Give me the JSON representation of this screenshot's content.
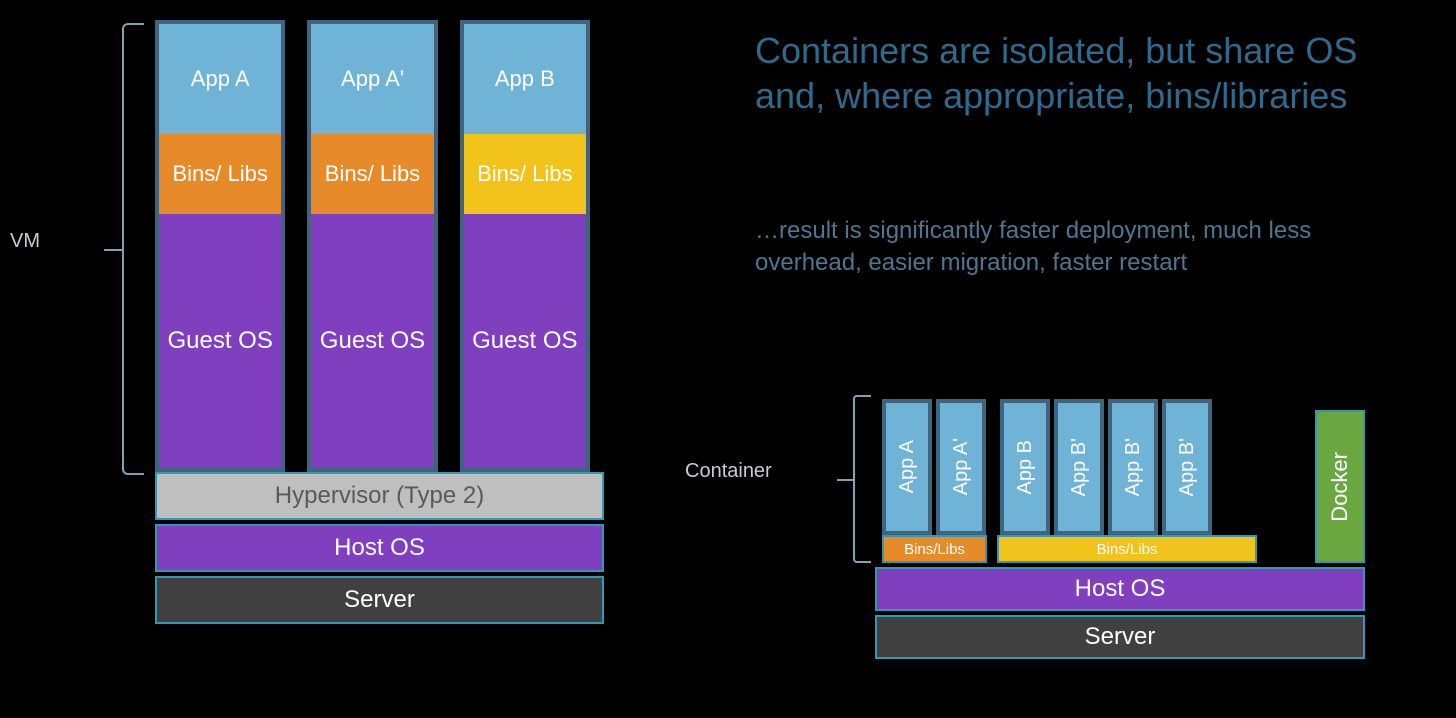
{
  "type": "infographic",
  "background_color": "#000000",
  "border_color_heavy": "#3f647e",
  "border_color_light": "#2f9ab6",
  "text_color_label": "#c9cbd0",
  "colors": {
    "app_blue": "#6fb4d6",
    "bins_orange": "#e78b2a",
    "bins_yellow": "#f2c31b",
    "guest_purple": "#7f3fbf",
    "hypervisor_gray": "#bfbfbf",
    "hostos_purple": "#7f3fbf",
    "server_dark": "#404040",
    "docker_green": "#6aa741"
  },
  "vm": {
    "bracket_label": "VM",
    "columns": [
      {
        "app": "App A",
        "bins": "Bins/ Libs",
        "bins_color": "#e78b2a",
        "guest": "Guest OS"
      },
      {
        "app": "App A'",
        "bins": "Bins/ Libs",
        "bins_color": "#e78b2a",
        "guest": "Guest OS"
      },
      {
        "app": "App B",
        "bins": "Bins/ Libs",
        "bins_color": "#f2c31b",
        "guest": "Guest OS"
      }
    ],
    "base_layers": [
      {
        "label": "Hypervisor (Type 2)",
        "color": "#bfbfbf",
        "text_color": "#5a5a5a"
      },
      {
        "label": "Host OS",
        "color": "#7f3fbf",
        "text_color": "#ffffff"
      },
      {
        "label": "Server",
        "color": "#404040",
        "text_color": "#ffffff"
      }
    ]
  },
  "headline": "Containers are isolated, but share OS and, where appropriate, bins/libraries",
  "subtext": "…result is significantly faster deployment, much less overhead, easier migration, faster restart",
  "container": {
    "bracket_label": "Container",
    "apps_group1": [
      "App A",
      "App A'"
    ],
    "apps_group2": [
      "App B",
      "App B'",
      "App B'",
      "App B'"
    ],
    "docker_label": "Docker",
    "bins": [
      {
        "label": "Bins/Libs",
        "color": "#e78b2a"
      },
      {
        "label": "Bins/Libs",
        "color": "#f2c31b"
      }
    ],
    "base_layers": [
      {
        "label": "Host OS",
        "color": "#7f3fbf",
        "text_color": "#ffffff"
      },
      {
        "label": "Server",
        "color": "#404040",
        "text_color": "#ffffff"
      }
    ]
  }
}
